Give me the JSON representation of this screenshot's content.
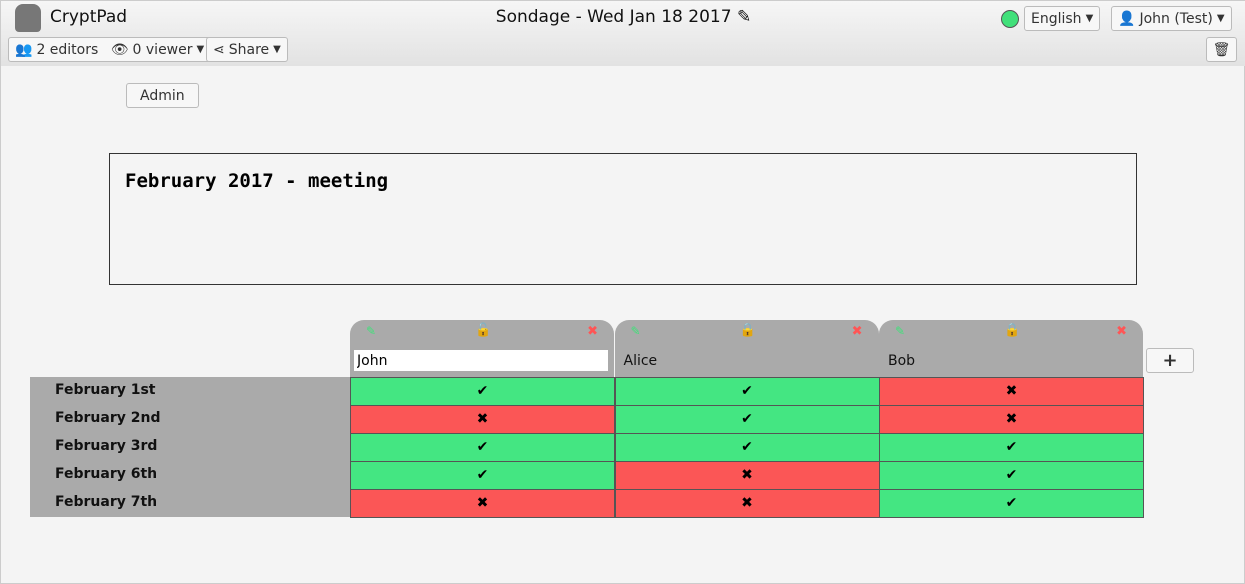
{
  "app": {
    "name": "CryptPad",
    "title": "Sondage - Wed Jan 18 2017"
  },
  "toolbar": {
    "editors": "2 editors",
    "viewers": "0 viewer",
    "share": "Share",
    "language": "English",
    "user": "John (Test)"
  },
  "status_color": "#41e07a",
  "admin": "Admin",
  "description": "February 2017 - meeting",
  "columns": [
    {
      "name": "John",
      "locked": false,
      "editing": true
    },
    {
      "name": "Alice",
      "locked": true
    },
    {
      "name": "Bob",
      "locked": true
    }
  ],
  "rows": [
    "February 1st",
    "February 2nd",
    "February 3rd",
    "February 6th",
    "February 7th"
  ],
  "votes": [
    [
      true,
      true,
      false
    ],
    [
      false,
      true,
      false
    ],
    [
      true,
      true,
      true
    ],
    [
      true,
      false,
      true
    ],
    [
      false,
      false,
      true
    ]
  ],
  "colors": {
    "yes": "#44e682",
    "no": "#fb5656"
  }
}
